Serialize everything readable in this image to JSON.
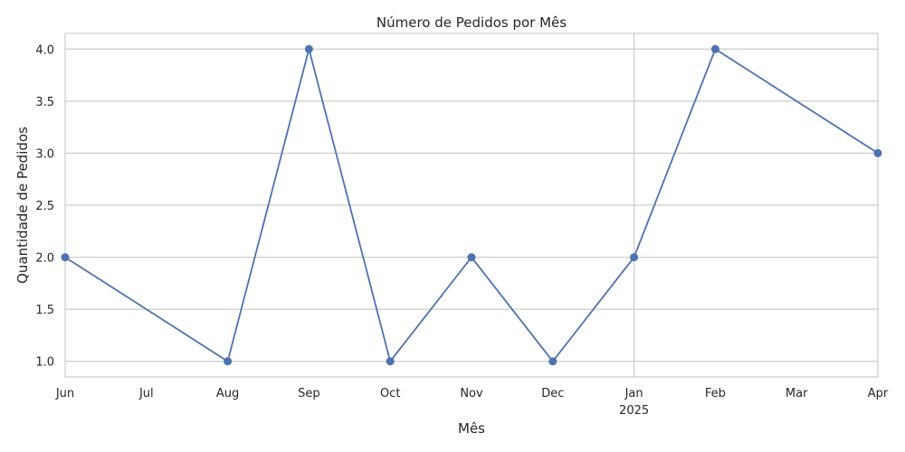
{
  "chart_data": {
    "type": "line",
    "title": "Número de Pedidos por Mês",
    "xlabel": "Mês",
    "ylabel": "Quantidade de Pedidos",
    "x_ticks": [
      "Jun",
      "Jul",
      "Aug",
      "Sep",
      "Oct",
      "Nov",
      "Dec",
      "Jan",
      "Feb",
      "Mar",
      "Apr"
    ],
    "x_year_label": "2025",
    "x_year_tick": "Jan",
    "x_range": [
      "Jun",
      "Apr"
    ],
    "y_ticks": [
      "1.0",
      "1.5",
      "2.0",
      "2.5",
      "3.0",
      "3.5",
      "4.0"
    ],
    "ylim": [
      0.85,
      4.15
    ],
    "grid": true,
    "color": "#4c72b0",
    "series": [
      {
        "x": [
          "Jun",
          "Aug",
          "Sep",
          "Oct",
          "Nov",
          "Dec",
          "Jan",
          "Feb",
          "Apr"
        ],
        "values": [
          2,
          1,
          4,
          1,
          2,
          1,
          2,
          4,
          3
        ]
      }
    ]
  }
}
